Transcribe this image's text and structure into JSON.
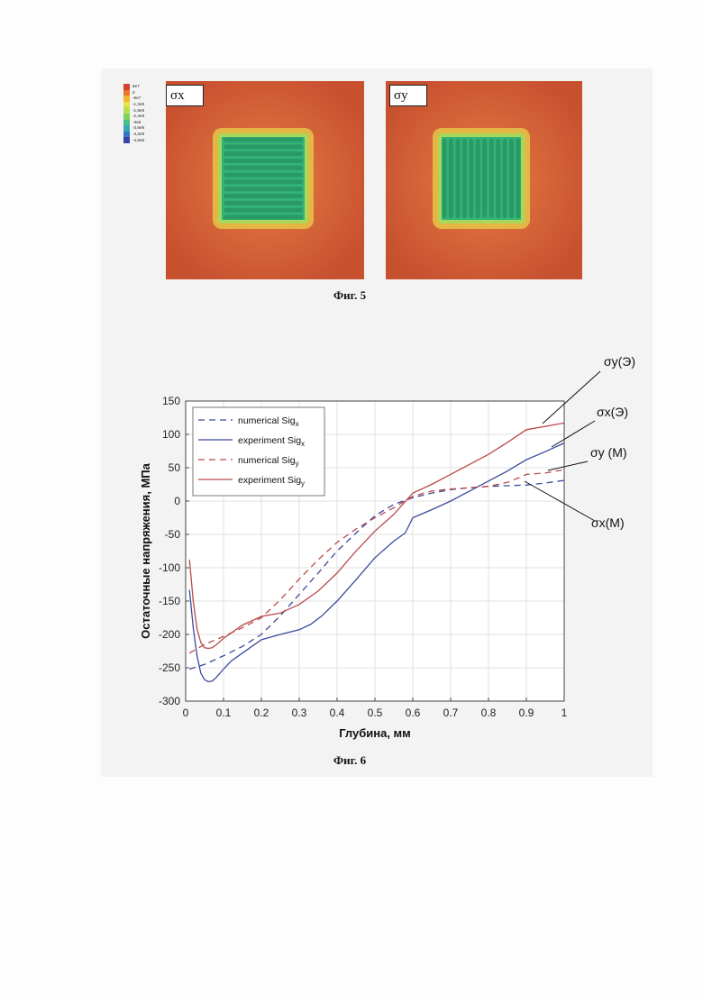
{
  "figure5": {
    "caption": "Фиг. 5",
    "panels": [
      {
        "label": "σx",
        "orientation": "horizontal"
      },
      {
        "label": "σy",
        "orientation": "vertical"
      }
    ],
    "colorbar": {
      "labels": [
        "6e7",
        "0",
        "-6e7",
        "-1,2e8",
        "-1,8e8",
        "-2,4e8",
        "-3e8",
        "-3,6e8",
        "-4,2e8",
        "-4,8e8"
      ],
      "colors": [
        "#d7402e",
        "#e8772a",
        "#f0b431",
        "#e5e34a",
        "#b7df55",
        "#7cd263",
        "#47c08a",
        "#3aa7b0",
        "#3874c4",
        "#3843a8"
      ]
    },
    "field_colors": {
      "background": "#c7502f",
      "halo": "#e08a3c",
      "inner": "#33b37a",
      "stripe": "#2a9a64"
    }
  },
  "figure6": {
    "caption": "Фиг. 6",
    "callouts": {
      "sy_exp": "σy(Э)",
      "sx_exp": "σx(Э)",
      "sy_num": "σy (M)",
      "sx_num": "σx(M)"
    }
  },
  "chart_data": {
    "type": "line",
    "title": "",
    "xlabel": "Глубина, мм",
    "ylabel": "Остаточные напряжения, МПа",
    "xlim": [
      0,
      1
    ],
    "ylim": [
      -300,
      150
    ],
    "xticks": [
      "0",
      "0.1",
      "0.2",
      "0.3",
      "0.4",
      "0.5",
      "0.6",
      "0.7",
      "0.8",
      "0.9",
      "1"
    ],
    "yticks": [
      "150",
      "100",
      "50",
      "0",
      "-50",
      "-100",
      "-150",
      "-200",
      "-250",
      "-300"
    ],
    "grid": true,
    "legend_position": "top-left",
    "series": [
      {
        "name": "numerical Sig",
        "sub": "x",
        "color": "#3a4a9c",
        "dash": true,
        "x": [
          0.01,
          0.05,
          0.1,
          0.15,
          0.2,
          0.25,
          0.3,
          0.35,
          0.4,
          0.45,
          0.5,
          0.55,
          0.6,
          0.65,
          0.7,
          0.75,
          0.8,
          0.85,
          0.9,
          0.95,
          1.0
        ],
        "y": [
          -252,
          -245,
          -232,
          -218,
          -200,
          -172,
          -140,
          -108,
          -75,
          -48,
          -22,
          -5,
          5,
          12,
          17,
          20,
          22,
          23,
          24,
          27,
          31
        ]
      },
      {
        "name": "experiment Sig",
        "sub": "x",
        "color": "#3a4a9c",
        "dash": false,
        "x": [
          0.01,
          0.02,
          0.03,
          0.04,
          0.05,
          0.06,
          0.07,
          0.08,
          0.1,
          0.12,
          0.15,
          0.2,
          0.25,
          0.3,
          0.33,
          0.36,
          0.4,
          0.45,
          0.5,
          0.55,
          0.58,
          0.6,
          0.65,
          0.7,
          0.75,
          0.8,
          0.85,
          0.9,
          0.95,
          1.0
        ],
        "y": [
          -133,
          -190,
          -232,
          -258,
          -268,
          -271,
          -270,
          -265,
          -252,
          -240,
          -228,
          -208,
          -200,
          -193,
          -185,
          -172,
          -150,
          -118,
          -85,
          -60,
          -48,
          -25,
          -13,
          0,
          15,
          30,
          45,
          62,
          74,
          87
        ]
      },
      {
        "name": "numerical Sig",
        "sub": "y",
        "color": "#b84a4a",
        "dash": true,
        "x": [
          0.01,
          0.05,
          0.1,
          0.15,
          0.2,
          0.25,
          0.3,
          0.35,
          0.4,
          0.45,
          0.5,
          0.55,
          0.6,
          0.65,
          0.7,
          0.75,
          0.8,
          0.85,
          0.88,
          0.9,
          0.95,
          1.0
        ],
        "y": [
          -228,
          -215,
          -203,
          -190,
          -175,
          -148,
          -117,
          -88,
          -62,
          -42,
          -25,
          -10,
          7,
          15,
          18,
          20,
          22,
          28,
          35,
          40,
          42,
          47
        ]
      },
      {
        "name": "experiment Sig",
        "sub": "y",
        "color": "#b84a4a",
        "dash": false,
        "x": [
          0.01,
          0.02,
          0.03,
          0.04,
          0.05,
          0.06,
          0.07,
          0.08,
          0.1,
          0.15,
          0.2,
          0.25,
          0.3,
          0.35,
          0.4,
          0.45,
          0.5,
          0.55,
          0.6,
          0.65,
          0.7,
          0.75,
          0.8,
          0.85,
          0.9,
          0.95,
          1.0
        ],
        "y": [
          -88,
          -150,
          -192,
          -212,
          -220,
          -221,
          -220,
          -216,
          -206,
          -186,
          -173,
          -168,
          -155,
          -135,
          -108,
          -75,
          -45,
          -20,
          12,
          25,
          40,
          55,
          70,
          88,
          107,
          112,
          117
        ]
      }
    ]
  }
}
